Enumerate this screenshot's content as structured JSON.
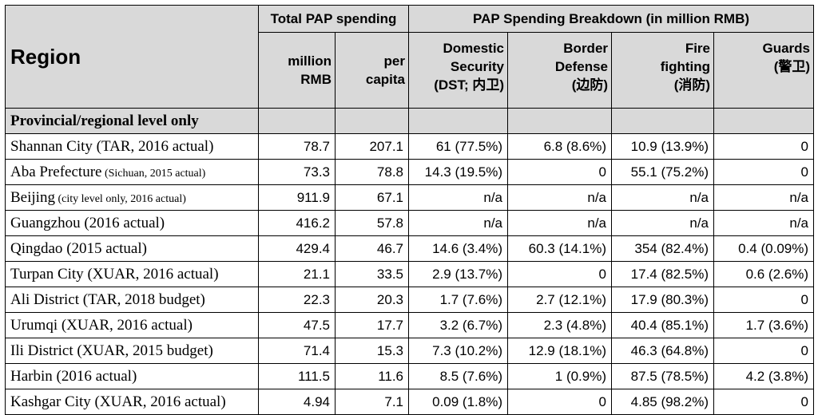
{
  "table": {
    "header": {
      "region": "Region",
      "total_group": "Total PAP spending",
      "breakdown_group": "PAP Spending Breakdown (in million RMB)",
      "million_rmb": [
        "million",
        "RMB"
      ],
      "per_capita": [
        "per",
        "capita"
      ],
      "domestic_security": [
        "Domestic",
        "Security",
        "(DST; 内卫)"
      ],
      "border_defense": [
        "Border",
        "Defense",
        "(边防)"
      ],
      "fire_fighting": [
        "Fire",
        "fighting",
        "(消防)"
      ],
      "guards": [
        "Guards",
        "(警卫)"
      ]
    },
    "section_label": "Provincial/regional level only",
    "rows": [
      {
        "name": "Shannan City",
        "note": " (TAR, 2016 actual)",
        "note_small": false,
        "million": "78.7",
        "per_capita": "207.1",
        "dst": "61 (77.5%)",
        "border": "6.8 (8.6%)",
        "fire": "10.9 (13.9%)",
        "guards": "0"
      },
      {
        "name": "Aba Prefecture",
        "note": " (Sichuan, 2015 actual)",
        "note_small": true,
        "million": "73.3",
        "per_capita": "78.8",
        "dst": "14.3 (19.5%)",
        "border": "0",
        "fire": "55.1 (75.2%)",
        "guards": "0"
      },
      {
        "name": "Beijing",
        "note": " (city level only, 2016 actual)",
        "note_small": true,
        "million": "911.9",
        "per_capita": "67.1",
        "dst": "n/a",
        "border": "n/a",
        "fire": "n/a",
        "guards": "n/a"
      },
      {
        "name": "Guangzhou",
        "note": " (2016 actual)",
        "note_small": false,
        "million": "416.2",
        "per_capita": "57.8",
        "dst": "n/a",
        "border": "n/a",
        "fire": "n/a",
        "guards": "n/a"
      },
      {
        "name": "Qingdao",
        "note": " (2015 actual)",
        "note_small": false,
        "million": "429.4",
        "per_capita": "46.7",
        "dst": "14.6 (3.4%)",
        "border": "60.3 (14.1%)",
        "fire": "354 (82.4%)",
        "guards": "0.4 (0.09%)"
      },
      {
        "name": "Turpan City",
        "note": " (XUAR, 2016 actual)",
        "note_small": false,
        "million": "21.1",
        "per_capita": "33.5",
        "dst": "2.9 (13.7%)",
        "border": "0",
        "fire": "17.4 (82.5%)",
        "guards": "0.6 (2.6%)"
      },
      {
        "name": "Ali District",
        "note": " (TAR, 2018 budget)",
        "note_small": false,
        "million": "22.3",
        "per_capita": "20.3",
        "dst": "1.7 (7.6%)",
        "border": "2.7 (12.1%)",
        "fire": "17.9 (80.3%)",
        "guards": "0"
      },
      {
        "name": "Urumqi",
        "note": " (XUAR, 2016 actual)",
        "note_small": false,
        "million": "47.5",
        "per_capita": "17.7",
        "dst": "3.2 (6.7%)",
        "border": "2.3 (4.8%)",
        "fire": "40.4 (85.1%)",
        "guards": "1.7 (3.6%)"
      },
      {
        "name": "Ili District",
        "note": " (XUAR, 2015 budget)",
        "note_small": false,
        "million": "71.4",
        "per_capita": "15.3",
        "dst": "7.3 (10.2%)",
        "border": "12.9 (18.1%)",
        "fire": "46.3 (64.8%)",
        "guards": "0"
      },
      {
        "name": "Harbin",
        "note": " (2016 actual)",
        "note_small": false,
        "million": "111.5",
        "per_capita": "11.6",
        "dst": "8.5 (7.6%)",
        "border": "1 (0.9%)",
        "fire": "87.5 (78.5%)",
        "guards": "4.2 (3.8%)"
      },
      {
        "name": "Kashgar City",
        "note": " (XUAR, 2016 actual)",
        "note_small": false,
        "million": "4.94",
        "per_capita": "7.1",
        "dst": "0.09 (1.8%)",
        "border": "0",
        "fire": "4.85 (98.2%)",
        "guards": "0"
      }
    ]
  }
}
